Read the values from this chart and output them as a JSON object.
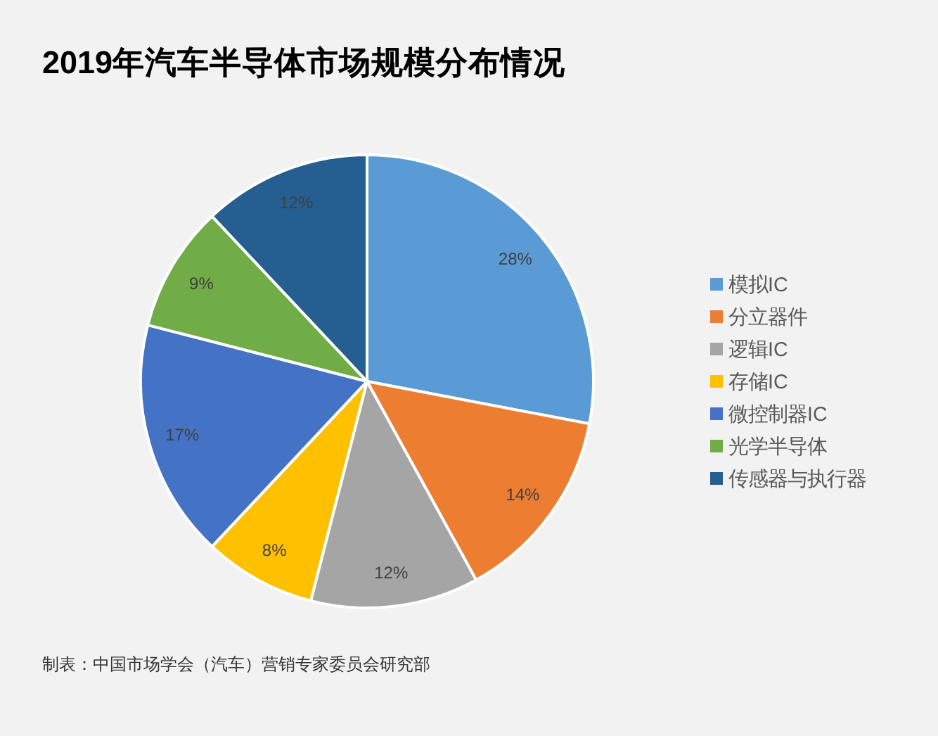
{
  "chart_data": {
    "type": "pie",
    "title": "2019年汽车半导体市场规模分布情况",
    "categories": [
      "模拟IC",
      "分立器件",
      "逻辑IC",
      "存储IC",
      "微控制器IC",
      "光学半导体",
      "传感器与执行器"
    ],
    "values": [
      28,
      14,
      12,
      8,
      17,
      9,
      12
    ],
    "colors": [
      "#5b9bd5",
      "#ed7d31",
      "#a5a5a5",
      "#ffc000",
      "#4472c4",
      "#70ad47",
      "#255e91"
    ],
    "value_labels": [
      "28%",
      "14%",
      "12%",
      "8%",
      "17%",
      "9%",
      "12%"
    ],
    "legend": "right",
    "annotations": [
      "制表：中国市场学会（汽车）营销专家委员会研究部"
    ]
  }
}
